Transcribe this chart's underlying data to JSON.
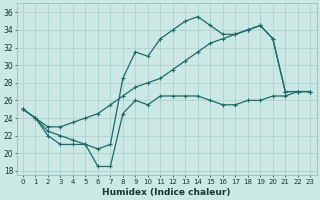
{
  "xlabel": "Humidex (Indice chaleur)",
  "background_color": "#cce8e5",
  "grid_color": "#aacfcc",
  "line_color": "#1a6b6b",
  "xlim": [
    -0.5,
    23.5
  ],
  "ylim": [
    17.5,
    37
  ],
  "yticks": [
    18,
    20,
    22,
    24,
    26,
    28,
    30,
    32,
    34,
    36
  ],
  "xticks": [
    0,
    1,
    2,
    3,
    4,
    5,
    6,
    7,
    8,
    9,
    10,
    11,
    12,
    13,
    14,
    15,
    16,
    17,
    18,
    19,
    20,
    21,
    22,
    23
  ],
  "line1_x": [
    0,
    1,
    2,
    3,
    4,
    5,
    6,
    7,
    8,
    9,
    10,
    11,
    12,
    13,
    14,
    15,
    16,
    17,
    18,
    19,
    20,
    21,
    22,
    23
  ],
  "line1_y": [
    25.0,
    24.0,
    22.5,
    22.0,
    21.5,
    21.0,
    20.5,
    21.0,
    28.5,
    31.5,
    31.0,
    33.0,
    34.0,
    35.0,
    35.5,
    34.5,
    33.5,
    33.5,
    34.0,
    34.5,
    33.0,
    27.0,
    27.0,
    27.0
  ],
  "line2_x": [
    0,
    1,
    2,
    3,
    4,
    5,
    6,
    7,
    8,
    9,
    10,
    11,
    12,
    13,
    14,
    15,
    16,
    17,
    18,
    19,
    20,
    21,
    22,
    23
  ],
  "line2_y": [
    25.0,
    24.0,
    23.0,
    23.0,
    23.5,
    24.0,
    24.5,
    25.5,
    26.5,
    27.5,
    28.0,
    28.5,
    29.5,
    30.5,
    31.5,
    32.5,
    33.0,
    33.5,
    34.0,
    34.5,
    33.0,
    27.0,
    27.0,
    27.0
  ],
  "line3_x": [
    0,
    1,
    2,
    3,
    4,
    5,
    6,
    7,
    8,
    9,
    10,
    11,
    12,
    13,
    14,
    15,
    16,
    17,
    18,
    19,
    20,
    21,
    22,
    23
  ],
  "line3_y": [
    25.0,
    24.0,
    22.0,
    21.0,
    21.0,
    21.0,
    18.5,
    18.5,
    24.5,
    26.0,
    25.5,
    26.5,
    26.5,
    26.5,
    26.5,
    26.0,
    25.5,
    25.5,
    26.0,
    26.0,
    26.5,
    26.5,
    27.0,
    27.0
  ]
}
